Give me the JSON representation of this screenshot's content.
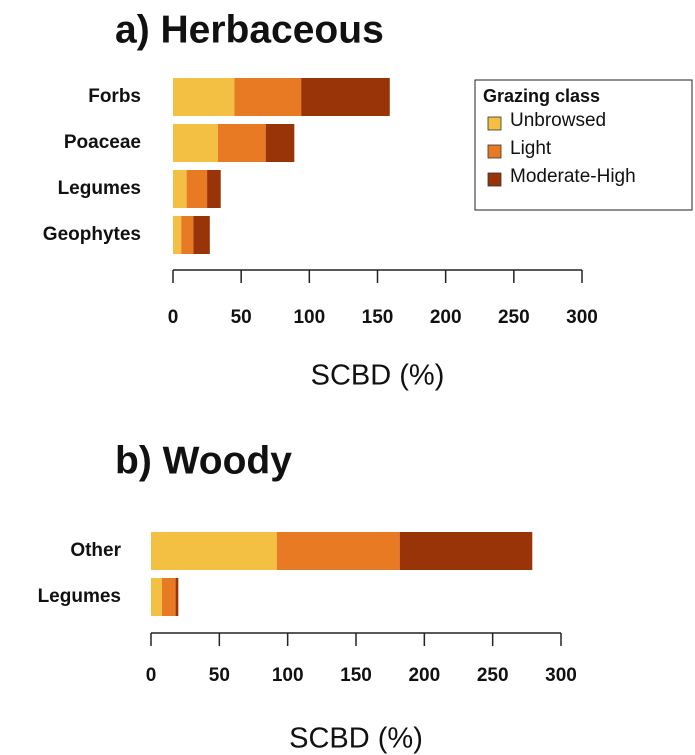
{
  "chart_data": [
    {
      "type": "bar",
      "orientation": "horizontal",
      "title": "a) Herbaceous",
      "xlabel": "SCBD (%)",
      "categories": [
        "Forbs",
        "Poaceae",
        "Legumes",
        "Geophytes"
      ],
      "series": [
        {
          "name": "Unbrowsed",
          "color": "#f4c043",
          "values": [
            45,
            33,
            10,
            6
          ]
        },
        {
          "name": "Light",
          "color": "#e97a24",
          "values": [
            49,
            35,
            15,
            9
          ]
        },
        {
          "name": "Moderate-High",
          "color": "#993308",
          "values": [
            65,
            21,
            10,
            12
          ]
        }
      ],
      "xlim": [
        0,
        300
      ],
      "xticks": [
        0,
        50,
        100,
        150,
        200,
        250,
        300
      ],
      "legend": {
        "title": "Grazing class",
        "position": "upper right"
      }
    },
    {
      "type": "bar",
      "orientation": "horizontal",
      "title": "b) Woody",
      "xlabel": "SCBD (%)",
      "categories": [
        "Other",
        "Legumes"
      ],
      "series": [
        {
          "color": "#f4c043",
          "values": [
            92,
            8
          ]
        },
        {
          "color": "#e97a24",
          "values": [
            90,
            10
          ]
        },
        {
          "color": "#993308",
          "values": [
            97,
            2
          ]
        }
      ],
      "xlim": [
        0,
        300
      ],
      "xticks": [
        0,
        50,
        100,
        150,
        200,
        250,
        300
      ]
    }
  ]
}
